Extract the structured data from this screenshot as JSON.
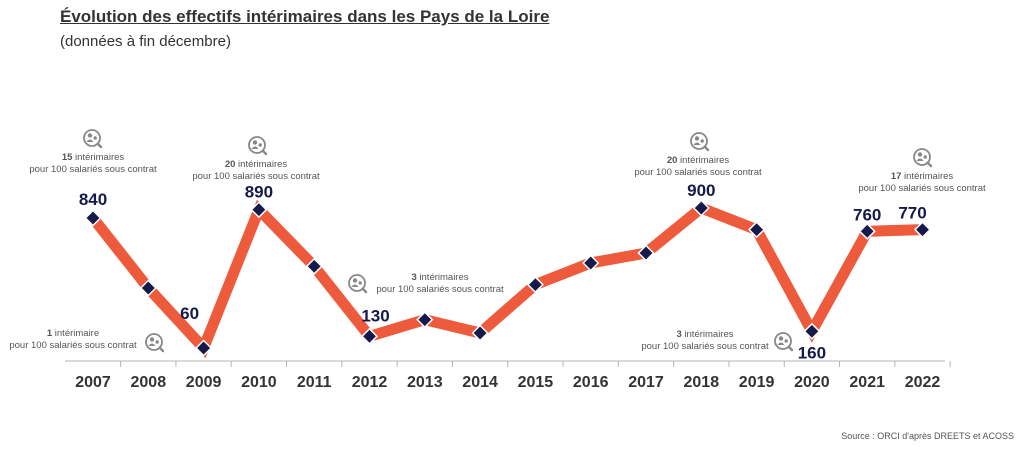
{
  "title": "Évolution des effectifs intérimaires dans les Pays de la Loire",
  "subtitle": "(données à fin décembre)",
  "source": "Source : ORCI d'après DREETS et ACOSS",
  "colors": {
    "line": "#EE5A3C",
    "marker": "#151A4A",
    "label": "#151A4A",
    "text": "#333333",
    "annotation": "#555555",
    "icon": "#888888"
  },
  "chart_data": {
    "type": "line",
    "categories": [
      "2007",
      "2008",
      "2009",
      "2010",
      "2011",
      "2012",
      "2013",
      "2014",
      "2015",
      "2016",
      "2017",
      "2018",
      "2019",
      "2020",
      "2021",
      "2022"
    ],
    "series": [
      {
        "values": [
          840,
          420,
          60,
          890,
          550,
          130,
          230,
          150,
          440,
          570,
          630,
          900,
          770,
          160,
          760,
          770
        ]
      }
    ],
    "ylim": [
      0,
      1000
    ],
    "data_labels": [
      {
        "year": "2007",
        "text": "840"
      },
      {
        "year": "2009",
        "text": "60"
      },
      {
        "year": "2010",
        "text": "890"
      },
      {
        "year": "2012",
        "text": "130"
      },
      {
        "year": "2018",
        "text": "900"
      },
      {
        "year": "2020",
        "text": "160"
      },
      {
        "year": "2021",
        "text": "760"
      },
      {
        "year": "2022",
        "text": "770"
      }
    ],
    "annotations": [
      {
        "year": "2007",
        "number": "15",
        "line1": " intérimaires",
        "line2": "pour 100 salariés sous contrat",
        "icon": "people-search-icon"
      },
      {
        "year": "2009",
        "number": "1",
        "line1": " intérimaire",
        "line2": "pour 100 salariés sous contrat",
        "icon": "people-search-icon"
      },
      {
        "year": "2010",
        "number": "20",
        "line1": " intérimaires",
        "line2": "pour 100 salariés sous contrat",
        "icon": "people-search-icon"
      },
      {
        "year": "2012",
        "number": "3",
        "line1": " intérimaires",
        "line2": "pour 100 salariés sous contrat",
        "icon": "people-search-icon"
      },
      {
        "year": "2018",
        "number": "20",
        "line1": " intérimaires",
        "line2": "pour 100 salariés sous contrat",
        "icon": "people-search-icon"
      },
      {
        "year": "2020",
        "number": "3",
        "line1": " intérimaires",
        "line2": "pour 100 salariés sous contrat",
        "icon": "people-search-icon"
      },
      {
        "year": "2022",
        "number": "17",
        "line1": " intérimaires",
        "line2": "pour 100 salariés sous contrat",
        "icon": "people-search-icon"
      }
    ]
  }
}
